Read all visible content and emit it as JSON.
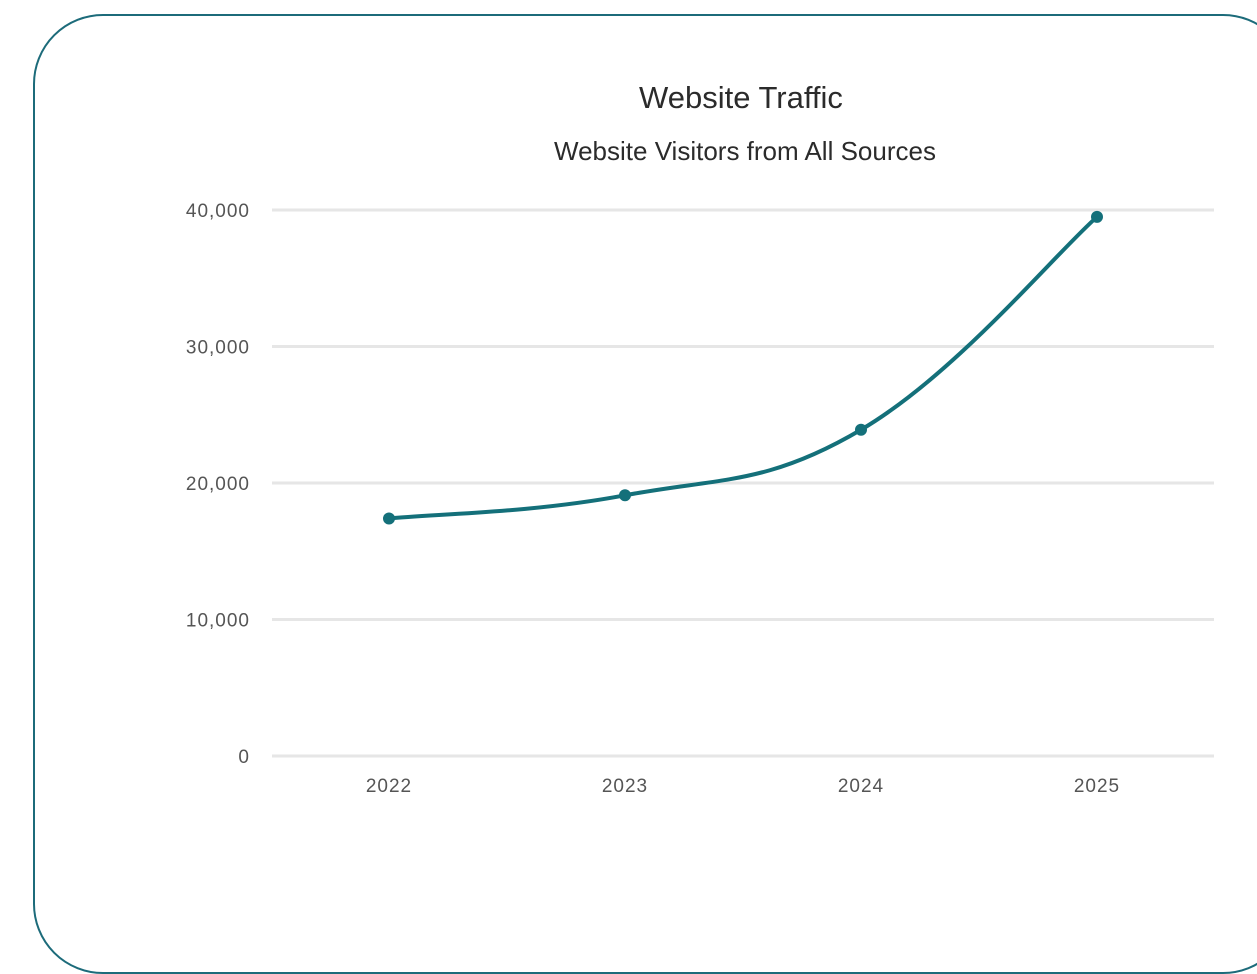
{
  "chart_data": {
    "type": "line",
    "title": "Website Traffic",
    "subtitle": "Website Visitors from All Sources",
    "xlabel": "",
    "ylabel": "",
    "categories": [
      "2022",
      "2023",
      "2024",
      "2025"
    ],
    "series": [
      {
        "values": [
          17400,
          19100,
          23900,
          39500
        ]
      }
    ],
    "ylim": [
      0,
      40000
    ],
    "yticks": [
      0,
      10000,
      20000,
      30000,
      40000
    ],
    "ytick_labels": [
      "0",
      "10,000",
      "20,000",
      "30,000",
      "40,000"
    ],
    "smooth": true,
    "grid": true,
    "legend": "none",
    "color": "#14707a"
  }
}
